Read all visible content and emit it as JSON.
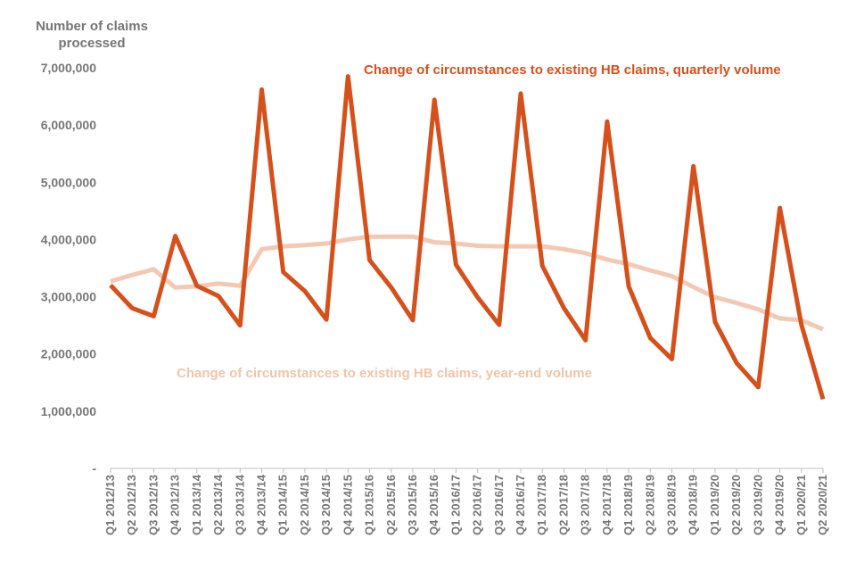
{
  "chart_data": {
    "type": "line",
    "ylabel_lines": [
      "Number of claims",
      "processed"
    ],
    "ylim": [
      0,
      7000000
    ],
    "y_ticks": [
      {
        "value": 0,
        "label": "-"
      },
      {
        "value": 1000000,
        "label": "1,000,000"
      },
      {
        "value": 2000000,
        "label": "2,000,000"
      },
      {
        "value": 3000000,
        "label": "3,000,000"
      },
      {
        "value": 4000000,
        "label": "4,000,000"
      },
      {
        "value": 5000000,
        "label": "5,000,000"
      },
      {
        "value": 6000000,
        "label": "6,000,000"
      },
      {
        "value": 7000000,
        "label": "7,000,000"
      }
    ],
    "categories": [
      "Q1 2012/13",
      "Q2 2012/13",
      "Q3 2012/13",
      "Q4 2012/13",
      "Q1 2013/14",
      "Q2 2013/14",
      "Q3 2013/14",
      "Q4 2013/14",
      "Q1 2014/15",
      "Q2 2014/15",
      "Q3 2014/15",
      "Q4 2014/15",
      "Q1 2015/16",
      "Q2 2015/16",
      "Q3 2015/16",
      "Q4 2015/16",
      "Q1 2016/17",
      "Q2 2016/17",
      "Q3 2016/17",
      "Q4 2016/17",
      "Q1 2017/18",
      "Q2 2017/18",
      "Q3 2017/18",
      "Q4 2017/18",
      "Q1 2018/19",
      "Q2 2018/19",
      "Q3 2018/19",
      "Q4 2018/19",
      "Q1 2019/20",
      "Q2 2019/20",
      "Q3 2019/20",
      "Q4 2019/20",
      "Q1 2020/21",
      "Q2 2020/21"
    ],
    "series": [
      {
        "name": "Change of circumstances to existing HB claims, year-end volume",
        "color": "#F4C9B3",
        "values": [
          3270000,
          3380000,
          3480000,
          3160000,
          3180000,
          3230000,
          3190000,
          3830000,
          3880000,
          3900000,
          3930000,
          4000000,
          4050000,
          4050000,
          4050000,
          3950000,
          3930000,
          3890000,
          3880000,
          3880000,
          3880000,
          3830000,
          3760000,
          3650000,
          3570000,
          3460000,
          3360000,
          3170000,
          2990000,
          2890000,
          2780000,
          2620000,
          2590000,
          2430000
        ]
      },
      {
        "name": "Change of circumstances to existing HB claims, quarterly volume",
        "color": "#D5501B",
        "values": [
          3200000,
          2800000,
          2660000,
          4060000,
          3190000,
          3010000,
          2500000,
          6620000,
          3430000,
          3100000,
          2600000,
          6850000,
          3640000,
          3160000,
          2590000,
          6440000,
          3560000,
          2990000,
          2510000,
          6550000,
          3540000,
          2800000,
          2240000,
          6060000,
          3180000,
          2280000,
          1910000,
          5280000,
          2560000,
          1840000,
          1420000,
          4550000,
          2510000,
          1210000
        ]
      }
    ]
  }
}
